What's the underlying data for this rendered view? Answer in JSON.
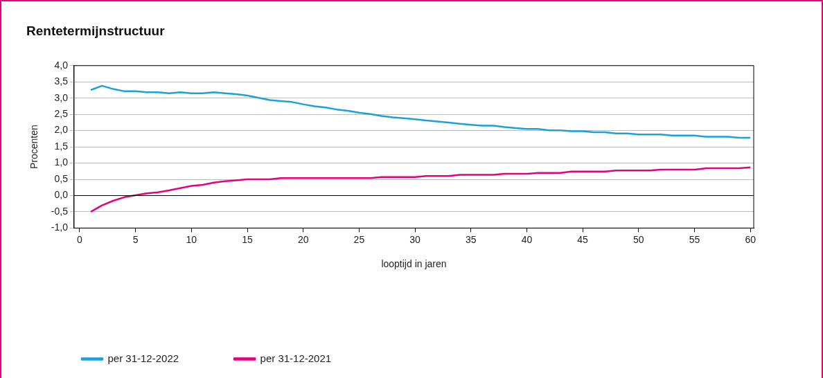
{
  "chart_data": {
    "type": "line",
    "title": "Rentetermijnstructuur",
    "xlabel": "looptijd in jaren",
    "ylabel": "Procenten",
    "x": [
      1,
      2,
      3,
      4,
      5,
      6,
      7,
      8,
      9,
      10,
      11,
      12,
      13,
      14,
      15,
      16,
      17,
      18,
      19,
      20,
      21,
      22,
      23,
      24,
      25,
      26,
      27,
      28,
      29,
      30,
      31,
      32,
      33,
      34,
      35,
      36,
      37,
      38,
      39,
      40,
      41,
      42,
      43,
      44,
      45,
      46,
      47,
      48,
      49,
      50,
      51,
      52,
      53,
      54,
      55,
      56,
      57,
      58,
      59,
      60
    ],
    "series": [
      {
        "name": "per 31-12-2022",
        "color": "#1aa0dc",
        "values": [
          3.25,
          3.38,
          3.28,
          3.21,
          3.21,
          3.18,
          3.18,
          3.15,
          3.18,
          3.15,
          3.15,
          3.18,
          3.15,
          3.12,
          3.08,
          3.01,
          2.94,
          2.91,
          2.88,
          2.81,
          2.75,
          2.71,
          2.65,
          2.61,
          2.55,
          2.51,
          2.45,
          2.41,
          2.38,
          2.35,
          2.31,
          2.28,
          2.25,
          2.21,
          2.18,
          2.15,
          2.15,
          2.11,
          2.08,
          2.05,
          2.05,
          2.01,
          2.01,
          1.98,
          1.98,
          1.95,
          1.95,
          1.91,
          1.91,
          1.88,
          1.88,
          1.88,
          1.85,
          1.85,
          1.85,
          1.81,
          1.81,
          1.81,
          1.78,
          1.78
        ]
      },
      {
        "name": "per 31-12-2021",
        "color": "#e5007e",
        "values": [
          -0.5,
          -0.3,
          -0.16,
          -0.05,
          0.01,
          0.07,
          0.1,
          0.16,
          0.23,
          0.3,
          0.33,
          0.4,
          0.44,
          0.47,
          0.5,
          0.5,
          0.5,
          0.54,
          0.54,
          0.54,
          0.54,
          0.54,
          0.54,
          0.54,
          0.54,
          0.54,
          0.57,
          0.57,
          0.57,
          0.57,
          0.6,
          0.6,
          0.6,
          0.64,
          0.64,
          0.64,
          0.64,
          0.67,
          0.67,
          0.67,
          0.7,
          0.7,
          0.7,
          0.74,
          0.74,
          0.74,
          0.74,
          0.77,
          0.77,
          0.77,
          0.77,
          0.8,
          0.8,
          0.8,
          0.8,
          0.84,
          0.84,
          0.84,
          0.84,
          0.87
        ]
      }
    ],
    "xlim": [
      -0.5,
      60.3
    ],
    "xticks": [
      0,
      5,
      10,
      15,
      20,
      25,
      30,
      35,
      40,
      45,
      50,
      55,
      60
    ],
    "ylim": [
      -1,
      4
    ],
    "yticks": [
      {
        "value": -1,
        "label": "-1,0"
      },
      {
        "value": -0.5,
        "label": "-0,5"
      },
      {
        "value": 0,
        "label": "0,0"
      },
      {
        "value": 0.5,
        "label": "0,5"
      },
      {
        "value": 1,
        "label": "1,0"
      },
      {
        "value": 1.5,
        "label": "1,5"
      },
      {
        "value": 2,
        "label": "2,0"
      },
      {
        "value": 2.5,
        "label": "2,5"
      },
      {
        "value": 3,
        "label": "3,0"
      },
      {
        "value": 3.5,
        "label": "3,5"
      },
      {
        "value": 4,
        "label": "4,0"
      }
    ],
    "ref_lines": [
      {
        "axis": "y",
        "value": 0,
        "color": "#000000"
      }
    ],
    "grid": "y",
    "legend": "bottom left",
    "marker": "none",
    "line_style": "solid"
  }
}
